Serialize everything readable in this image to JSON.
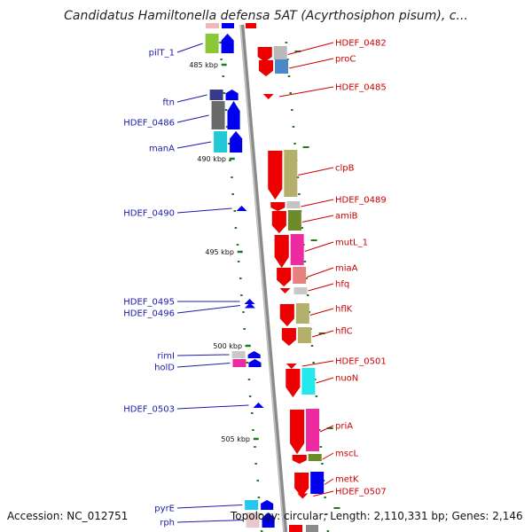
{
  "title": "Candidatus Hamiltonella defensa 5AT (Acyrthosiphon pisum), c...",
  "footer": {
    "accession": "Accession: NC_012751",
    "topology": "Topology: circular; Length: 2,110,331 bp; Genes: 2,146"
  },
  "colors": {
    "backbone": "#8a8a8a",
    "plus_strand": "#ee0000",
    "minus_strand": "#0000ee",
    "plus_label": "#cc0000",
    "minus_label": "#1a1aaa",
    "tick": "#1e7a1e"
  },
  "scale_labels": [
    "485 kbp",
    "490 kbp",
    "495 kbp",
    "500 kbp",
    "505 kbp"
  ],
  "right_genes": [
    {
      "name": "HDEF_0482",
      "color": "#ee0000",
      "cog": "#b9b9b9"
    },
    {
      "name": "proC",
      "color": "#ee0000",
      "cog": "#4a86c8"
    },
    {
      "name": "HDEF_0485",
      "color": "#ee0000"
    },
    {
      "name": "clpB",
      "color": "#ee0000",
      "cog": "#b4b06c"
    },
    {
      "name": "HDEF_0489",
      "color": "#ee0000",
      "cog": "#c4c4c4"
    },
    {
      "name": "amiB",
      "color": "#ee0000",
      "cog": "#6e8a2a"
    },
    {
      "name": "mutL_1",
      "color": "#ee0000",
      "cog": "#ee2aa0"
    },
    {
      "name": "miaA",
      "color": "#ee0000",
      "cog": "#e88080"
    },
    {
      "name": "hfq",
      "color": "#ee0000",
      "cog": "#c8c8c8"
    },
    {
      "name": "hflK",
      "color": "#ee0000",
      "cog": "#b4b06c"
    },
    {
      "name": "hflC",
      "color": "#ee0000",
      "cog": "#b4b06c"
    },
    {
      "name": "HDEF_0501",
      "color": "#ee0000"
    },
    {
      "name": "nuoN",
      "color": "#ee0000",
      "cog": "#22e8ee"
    },
    {
      "name": "priA",
      "color": "#ee0000",
      "cog": "#ee2aa0"
    },
    {
      "name": "mscL",
      "color": "#ee0000",
      "cog": "#6e8a2a"
    },
    {
      "name": "metK",
      "color": "#ee0000",
      "cog": "#0000ee"
    },
    {
      "name": "HDEF_0507",
      "color": "#ee0000"
    }
  ],
  "left_genes": [
    {
      "name": "pilT_1",
      "color": "#0000ee",
      "cog": "#8ac83a"
    },
    {
      "name": "ftn",
      "color": "#0000ee",
      "cog": "#3a3a8a"
    },
    {
      "name": "HDEF_0486",
      "color": "#0000ee",
      "cog": "#6a6a6a"
    },
    {
      "name": "manA",
      "color": "#0000ee",
      "cog": "#22c8d8"
    },
    {
      "name": "HDEF_0490",
      "color": "#0000ee"
    },
    {
      "name": "HDEF_0495",
      "color": "#0000ee"
    },
    {
      "name": "HDEF_0496",
      "color": "#0000ee"
    },
    {
      "name": "rimI",
      "color": "#0000ee",
      "cog": "#c8c8c8"
    },
    {
      "name": "holD",
      "color": "#0000ee",
      "cog": "#ee2aa0"
    },
    {
      "name": "HDEF_0503",
      "color": "#0000ee"
    },
    {
      "name": "pyrE",
      "color": "#0000ee",
      "cog": "#22c8ee"
    },
    {
      "name": "rph",
      "color": "#0000ee",
      "cog": "#e8c8c8"
    }
  ]
}
